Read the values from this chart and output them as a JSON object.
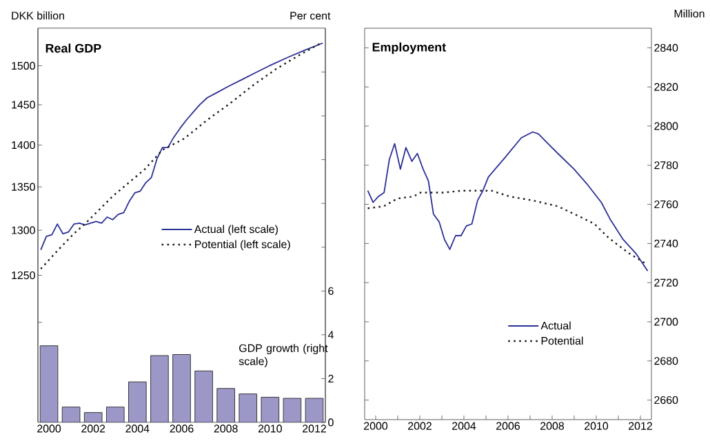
{
  "chart_data": [
    {
      "type": "line",
      "title": "Real GDP",
      "ylabel": "DKK billion",
      "y2label": "Per cent",
      "legend": "right",
      "xlim": [
        1999.5,
        2012.5
      ],
      "xticks": [
        2000,
        {
          "value": 2001,
          "label": null
        },
        2002,
        {
          "value": 2003,
          "label": null
        },
        2004,
        {
          "value": 2005,
          "label": null
        },
        2006,
        {
          "value": 2007,
          "label": null
        },
        2008,
        {
          "value": 2009,
          "label": null
        },
        2010,
        {
          "value": 2011,
          "label": null
        },
        2012
      ],
      "ylim": [
        1100,
        1550
      ],
      "log": "y",
      "yticks": [
        {
          "value": 1200,
          "label": null
        },
        1250,
        1300,
        1350,
        1400,
        1450,
        1500
      ],
      "y2lim": [
        0,
        18
      ],
      "y2ticks": [
        0,
        2,
        4,
        6,
        {
          "value": 8,
          "label": null
        },
        {
          "value": 10,
          "label": null
        },
        {
          "value": 12,
          "label": null
        },
        {
          "value": 14,
          "label": null
        },
        {
          "value": 16,
          "label": null
        }
      ],
      "series": [
        {
          "name": "Actual (left scale)",
          "color": "#2b2f96",
          "line_style": "solid",
          "x": [
            1999.63,
            1999.88,
            2000.13,
            2000.38,
            2000.63,
            2000.88,
            2001.13,
            2001.38,
            2001.63,
            2001.88,
            2002.13,
            2002.38,
            2002.63,
            2002.88,
            2003.13,
            2003.38,
            2003.63,
            2003.88,
            2004.13,
            2004.38,
            2004.63,
            2004.88,
            2005.13,
            2005.38,
            2005.63,
            2005.94,
            2006.22,
            2006.5,
            2006.82,
            2007.16,
            2007.57,
            2008.09,
            2008.72,
            2009.34,
            2009.97,
            2010.8,
            2011.53,
            2012.38
          ],
          "values": [
            1278,
            1293,
            1295,
            1307,
            1296,
            1298,
            1307,
            1308,
            1306,
            1308,
            1310,
            1308,
            1315,
            1312,
            1318,
            1320,
            1333,
            1343,
            1345,
            1355,
            1361,
            1383,
            1397,
            1397,
            1409,
            1421,
            1431,
            1440,
            1450,
            1459,
            1465,
            1473,
            1482,
            1491,
            1500,
            1511,
            1520,
            1530
          ]
        },
        {
          "name": "Potential (left scale)",
          "color": "#1a1a1a",
          "line_style": "dotted",
          "x": [
            1999.63,
            2000.38,
            2001.12,
            2001.66,
            2002.88,
            2004.34,
            2005.13,
            2006.12,
            2007.16,
            2008.2,
            2009.24,
            2010.28,
            2011.32,
            2012.31
          ],
          "values": [
            1257,
            1277,
            1296,
            1308,
            1339,
            1371,
            1394,
            1408,
            1431,
            1452,
            1475,
            1496,
            1514,
            1530
          ]
        },
        {
          "name": "GDP growth (right scale)",
          "type": "bar",
          "axis": "y2",
          "color": "#9b98c8",
          "x": [
            2000,
            2001,
            2002,
            2003,
            2004,
            2005,
            2006,
            2007,
            2008,
            2009,
            2010,
            2011,
            2012
          ],
          "values": [
            3.5,
            0.7,
            0.45,
            0.7,
            1.85,
            3.05,
            3.1,
            2.35,
            1.55,
            1.3,
            1.15,
            1.1,
            1.1
          ]
        }
      ]
    },
    {
      "type": "line",
      "title": "Employment",
      "y2label": "Million",
      "legend": "bottom",
      "xlim": [
        1999.5,
        2012.5
      ],
      "xticks": [
        2000,
        {
          "value": 2001,
          "label": null
        },
        2002,
        {
          "value": 2003,
          "label": null
        },
        2004,
        {
          "value": 2005,
          "label": null
        },
        2006,
        {
          "value": 2007,
          "label": null
        },
        2008,
        {
          "value": 2009,
          "label": null
        },
        2010,
        {
          "value": 2011,
          "label": null
        },
        2012
      ],
      "y2lim": [
        2650,
        2850
      ],
      "y2ticks": [
        2660,
        2680,
        2700,
        2720,
        2740,
        2760,
        2780,
        2800,
        2820,
        2840
      ],
      "series": [
        {
          "name": "Actual",
          "axis": "y2",
          "color": "#2b2f96",
          "line_style": "solid",
          "x": [
            1999.64,
            1999.88,
            2000.12,
            2000.38,
            2000.62,
            2000.86,
            2001.12,
            2001.37,
            2001.64,
            2001.89,
            2002.15,
            2002.39,
            2002.62,
            2002.88,
            2003.12,
            2003.36,
            2003.62,
            2003.87,
            2004.11,
            2004.36,
            2004.62,
            2004.86,
            2005.11,
            2005.87,
            2006.6,
            2007.12,
            2007.38,
            2007.64,
            2008.26,
            2008.99,
            2009.61,
            2010.23,
            2010.65,
            2011.22,
            2011.79,
            2012.33
          ],
          "values": [
            2767,
            2761,
            2764,
            2766,
            2783,
            2791,
            2778,
            2789,
            2782,
            2786,
            2778,
            2772,
            2755,
            2751,
            2742,
            2737,
            2744,
            2744,
            2749,
            2750,
            2762,
            2767,
            2774,
            2784,
            2794,
            2797,
            2796,
            2793,
            2786,
            2778,
            2770,
            2761,
            2752,
            2742,
            2735,
            2726
          ]
        },
        {
          "name": "Potential",
          "axis": "y2",
          "color": "#1a1a1a",
          "line_style": "dotted",
          "x": [
            1999.64,
            2000.36,
            2000.99,
            2001.71,
            2002.03,
            2003.06,
            2003.9,
            2004.73,
            2005.25,
            2006.08,
            2007.12,
            2008.26,
            2009.2,
            2009.92,
            2010.55,
            2011.48,
            2012.21
          ],
          "values": [
            2758,
            2759,
            2763,
            2764,
            2766,
            2766,
            2767,
            2767,
            2767,
            2764,
            2762,
            2759,
            2754,
            2750,
            2743,
            2735,
            2730
          ]
        }
      ]
    }
  ]
}
